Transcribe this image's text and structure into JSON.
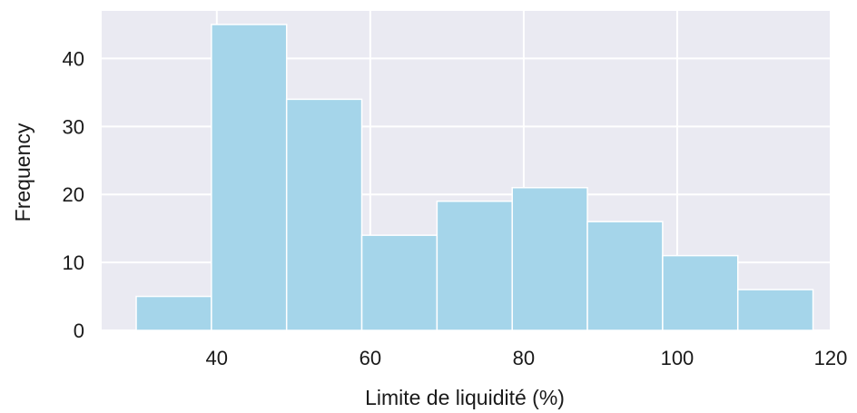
{
  "chart_data": {
    "type": "bar",
    "subtype": "histogram",
    "title": "",
    "xlabel": "Limite de liquidité (%)",
    "ylabel": "Frequency",
    "xlim": [
      25,
      120
    ],
    "ylim": [
      0,
      47
    ],
    "xticks": [
      40,
      60,
      80,
      100,
      120
    ],
    "yticks": [
      0,
      10,
      20,
      30,
      40
    ],
    "bins": [
      {
        "start": 29.5,
        "end": 39.3,
        "count": 5
      },
      {
        "start": 39.3,
        "end": 49.1,
        "count": 45
      },
      {
        "start": 49.1,
        "end": 58.9,
        "count": 34
      },
      {
        "start": 58.9,
        "end": 68.7,
        "count": 14
      },
      {
        "start": 68.7,
        "end": 78.5,
        "count": 19
      },
      {
        "start": 78.5,
        "end": 88.3,
        "count": 21
      },
      {
        "start": 88.3,
        "end": 98.1,
        "count": 16
      },
      {
        "start": 98.1,
        "end": 107.9,
        "count": 11
      },
      {
        "start": 107.9,
        "end": 117.7,
        "count": 6
      }
    ],
    "grid": true,
    "colors": {
      "background": "#eaeaf2",
      "bar_fill": "#a5d5ea",
      "bar_edge": "#ffffff",
      "grid": "#ffffff"
    }
  }
}
